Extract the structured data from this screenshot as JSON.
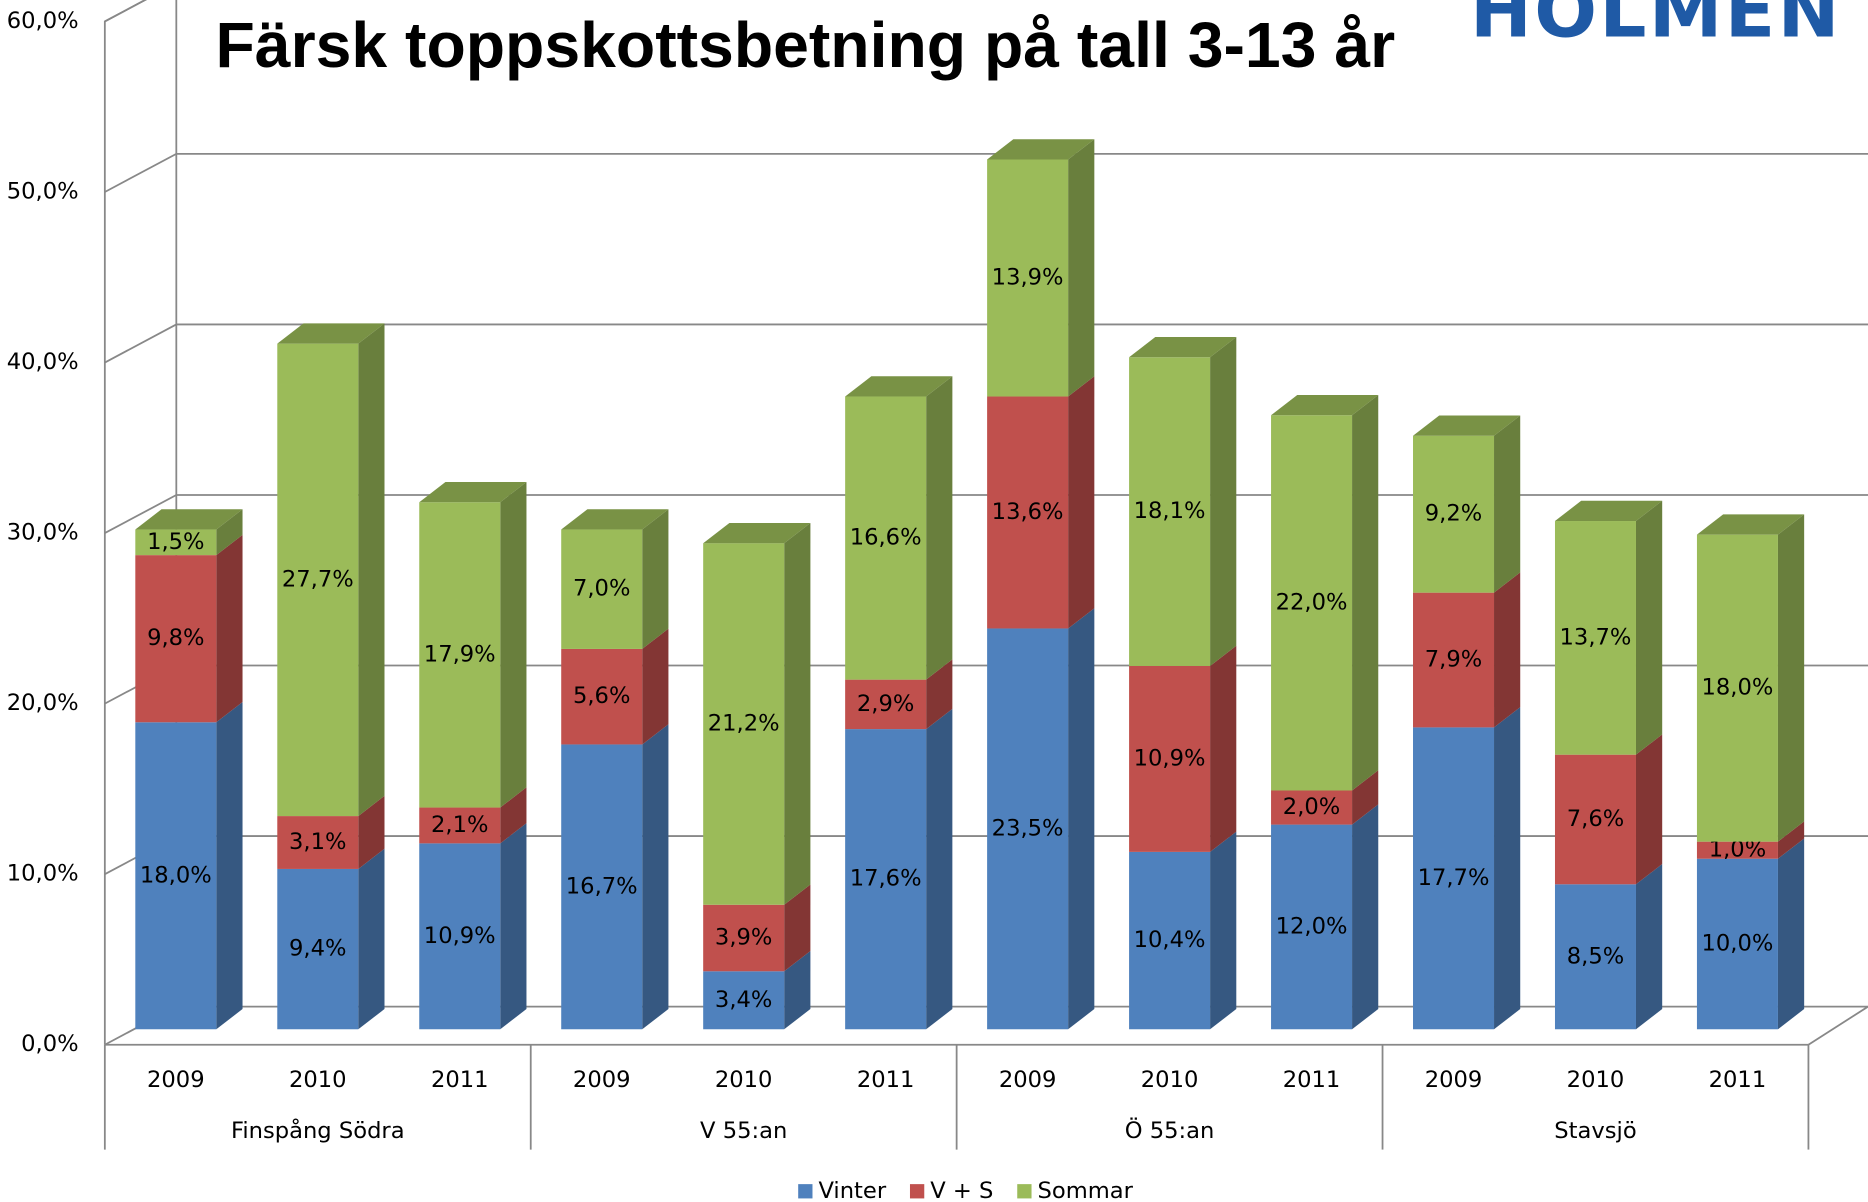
{
  "chart_data": {
    "type": "bar3d_stacked",
    "title": "Färsk toppskottsbetning på tall 3-13 år",
    "logo": "HOLMEN",
    "categories": [
      "2009",
      "2010",
      "2011",
      "2009",
      "2010",
      "2011",
      "2009",
      "2010",
      "2011",
      "2009",
      "2010",
      "2011"
    ],
    "groups": [
      "Finspång Södra",
      "V 55:an",
      "Ö 55:an",
      "Stavsjö"
    ],
    "series": [
      {
        "name": "Vinter",
        "color": "#4f81bd",
        "values": [
          18.0,
          9.4,
          10.9,
          16.7,
          3.4,
          17.6,
          23.5,
          10.4,
          12.0,
          17.7,
          8.5,
          10.0
        ],
        "value_labels": [
          "18,0%",
          "9,4%",
          "10,9%",
          "16,7%",
          "3,4%",
          "17,6%",
          "23,5%",
          "10,4%",
          "12,0%",
          "17,7%",
          "8,5%",
          "10,0%"
        ]
      },
      {
        "name": "V + S",
        "color": "#c0504d",
        "values": [
          9.8,
          3.1,
          2.1,
          5.6,
          3.9,
          2.9,
          13.6,
          10.9,
          2.0,
          7.9,
          7.6,
          1.0
        ],
        "value_labels": [
          "9,8%",
          "3,1%",
          "2,1%",
          "5,6%",
          "3,9%",
          "2,9%",
          "13,6%",
          "10,9%",
          "2,0%",
          "7,9%",
          "7,6%",
          "1,0%"
        ]
      },
      {
        "name": "Sommar",
        "color": "#9bbb59",
        "values": [
          1.5,
          27.7,
          17.9,
          7.0,
          21.2,
          16.6,
          13.9,
          18.1,
          22.0,
          9.2,
          13.7,
          18.0
        ],
        "value_labels": [
          "1,5%",
          "27,7%",
          "17,9%",
          "7,0%",
          "21,2%",
          "16,6%",
          "13,9%",
          "18,1%",
          "22,0%",
          "9,2%",
          "13,7%",
          "18,0%"
        ]
      }
    ],
    "ylim": [
      0,
      60
    ],
    "yticks": [
      {
        "value": 0,
        "label": "0,0%"
      },
      {
        "value": 10,
        "label": "10,0%"
      },
      {
        "value": 20,
        "label": "20,0%"
      },
      {
        "value": 30,
        "label": "30,0%"
      },
      {
        "value": 40,
        "label": "40,0%"
      },
      {
        "value": 50,
        "label": "50,0%"
      },
      {
        "value": 60,
        "label": "60,0%"
      }
    ],
    "grid": true,
    "legend": "bottom"
  }
}
